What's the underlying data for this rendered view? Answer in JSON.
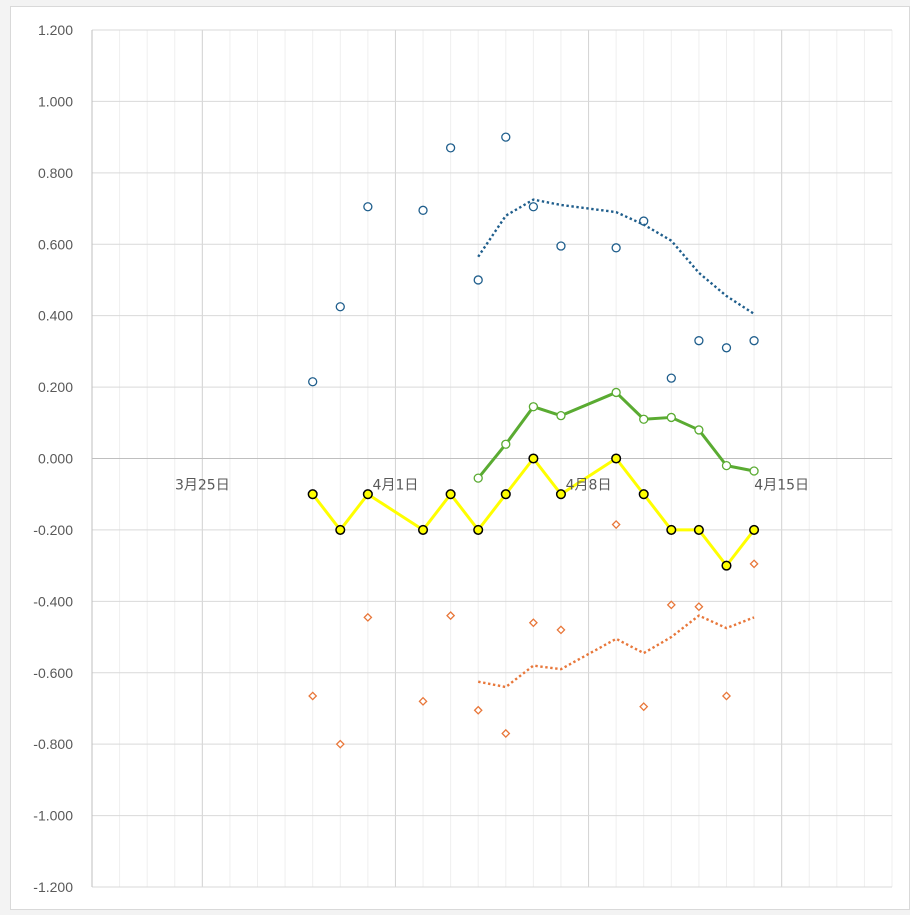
{
  "chart_data": {
    "type": "line",
    "title": "",
    "xlabel": "",
    "ylabel": "",
    "x_axis": {
      "type": "date",
      "range": [
        "2024-03-21",
        "2024-04-19"
      ],
      "major_ticks": [
        "2024-03-25",
        "2024-04-01",
        "2024-04-08",
        "2024-04-15"
      ],
      "major_tick_labels": [
        "3月25日",
        "4月1日",
        "4月8日",
        "4月15日"
      ],
      "minor_gridlines": "daily",
      "tick_label_position": "at y = 0"
    },
    "y_axis": {
      "range": [
        -1.2,
        1.2
      ],
      "step": 0.2,
      "tick_labels": [
        "1.200",
        "1.000",
        "0.800",
        "0.600",
        "0.400",
        "0.200",
        "0.000",
        "-0.200",
        "-0.400",
        "-0.600",
        "-0.800",
        "-1.000",
        "-1.200"
      ]
    },
    "grid": true,
    "legend": "none",
    "series": [
      {
        "style": "markers",
        "marker": "circle-open",
        "color": "#1f5e8c",
        "points": [
          [
            "2024-03-29",
            0.215
          ],
          [
            "2024-03-30",
            0.425
          ],
          [
            "2024-03-31",
            0.705
          ],
          [
            "2024-04-02",
            0.695
          ],
          [
            "2024-04-03",
            0.87
          ],
          [
            "2024-04-04",
            0.5
          ],
          [
            "2024-04-05",
            0.9
          ],
          [
            "2024-04-06",
            0.705
          ],
          [
            "2024-04-07",
            0.595
          ],
          [
            "2024-04-09",
            0.59
          ],
          [
            "2024-04-10",
            0.665
          ],
          [
            "2024-04-11",
            0.225
          ],
          [
            "2024-04-12",
            0.33
          ],
          [
            "2024-04-13",
            0.31
          ],
          [
            "2024-04-14",
            0.33
          ]
        ]
      },
      {
        "style": "dotted-line",
        "color": "#1f5e8c",
        "points": [
          [
            "2024-04-04",
            0.565
          ],
          [
            "2024-04-05",
            0.68
          ],
          [
            "2024-04-06",
            0.725
          ],
          [
            "2024-04-07",
            0.71
          ],
          [
            "2024-04-09",
            0.69
          ],
          [
            "2024-04-10",
            0.655
          ],
          [
            "2024-04-11",
            0.61
          ],
          [
            "2024-04-12",
            0.52
          ],
          [
            "2024-04-13",
            0.455
          ],
          [
            "2024-04-14",
            0.405
          ]
        ]
      },
      {
        "style": "line-markers",
        "marker": "circle-open",
        "color": "#5aab32",
        "points": [
          [
            "2024-04-04",
            -0.055
          ],
          [
            "2024-04-05",
            0.04
          ],
          [
            "2024-04-06",
            0.145
          ],
          [
            "2024-04-07",
            0.12
          ],
          [
            "2024-04-09",
            0.185
          ],
          [
            "2024-04-10",
            0.11
          ],
          [
            "2024-04-11",
            0.115
          ],
          [
            "2024-04-12",
            0.08
          ],
          [
            "2024-04-13",
            -0.02
          ],
          [
            "2024-04-14",
            -0.035
          ]
        ]
      },
      {
        "style": "line-markers",
        "marker": "circle-filled",
        "color": "#ffff00",
        "marker_edge": "#000000",
        "points": [
          [
            "2024-03-29",
            -0.1
          ],
          [
            "2024-03-30",
            -0.2
          ],
          [
            "2024-03-31",
            -0.1
          ],
          [
            "2024-04-02",
            -0.2
          ],
          [
            "2024-04-03",
            -0.1
          ],
          [
            "2024-04-04",
            -0.2
          ],
          [
            "2024-04-05",
            -0.1
          ],
          [
            "2024-04-06",
            0.0
          ],
          [
            "2024-04-07",
            -0.1
          ],
          [
            "2024-04-09",
            0.0
          ],
          [
            "2024-04-10",
            -0.1
          ],
          [
            "2024-04-11",
            -0.2
          ],
          [
            "2024-04-12",
            -0.2
          ],
          [
            "2024-04-13",
            -0.3
          ],
          [
            "2024-04-14",
            -0.2
          ]
        ]
      },
      {
        "style": "markers",
        "marker": "diamond-open",
        "color": "#e8773a",
        "points": [
          [
            "2024-03-29",
            -0.665
          ],
          [
            "2024-03-30",
            -0.8
          ],
          [
            "2024-03-31",
            -0.445
          ],
          [
            "2024-04-02",
            -0.68
          ],
          [
            "2024-04-03",
            -0.44
          ],
          [
            "2024-04-04",
            -0.705
          ],
          [
            "2024-04-05",
            -0.77
          ],
          [
            "2024-04-06",
            -0.46
          ],
          [
            "2024-04-07",
            -0.48
          ],
          [
            "2024-04-09",
            -0.185
          ],
          [
            "2024-04-10",
            -0.695
          ],
          [
            "2024-04-11",
            -0.41
          ],
          [
            "2024-04-12",
            -0.415
          ],
          [
            "2024-04-13",
            -0.665
          ],
          [
            "2024-04-14",
            -0.295
          ]
        ]
      },
      {
        "style": "dotted-line",
        "color": "#e8773a",
        "points": [
          [
            "2024-04-04",
            -0.625
          ],
          [
            "2024-04-05",
            -0.64
          ],
          [
            "2024-04-06",
            -0.58
          ],
          [
            "2024-04-07",
            -0.59
          ],
          [
            "2024-04-09",
            -0.505
          ],
          [
            "2024-04-10",
            -0.545
          ],
          [
            "2024-04-11",
            -0.5
          ],
          [
            "2024-04-12",
            -0.44
          ],
          [
            "2024-04-13",
            -0.475
          ],
          [
            "2024-04-14",
            -0.445
          ]
        ]
      }
    ]
  }
}
